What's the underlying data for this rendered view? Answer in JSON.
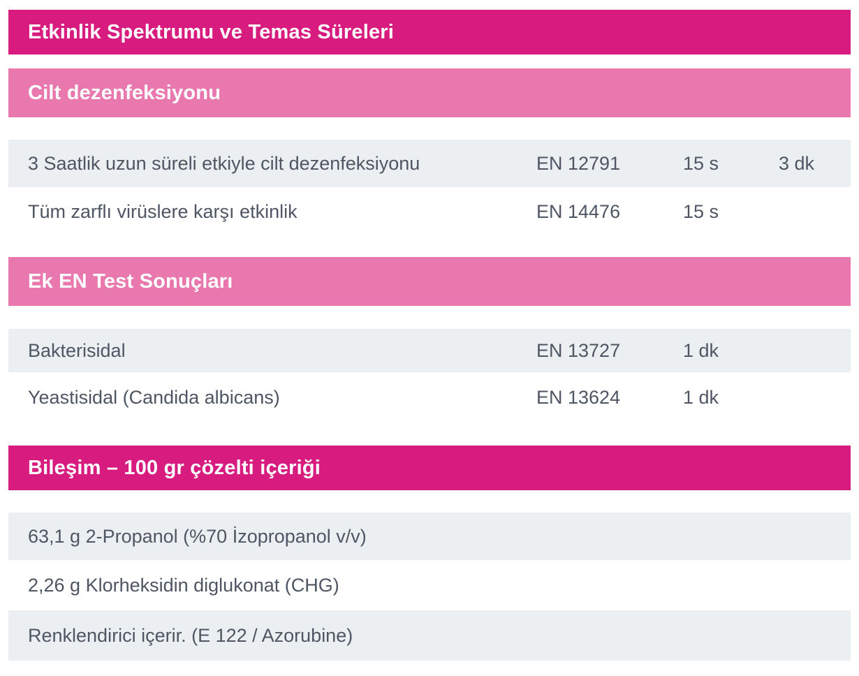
{
  "headers": {
    "main": "Etkinlik Spektrumu ve Temas Süreleri",
    "skin": "Cilt dezenfeksiyonu",
    "extra_tests": "Ek EN Test Sonuçları",
    "composition": "Bileşim – 100 gr çözelti içeriği"
  },
  "skin_rows": [
    {
      "label": "3 Saatlik uzun süreli etkiyle cilt dezenfeksiyonu",
      "standard": "EN 12791",
      "time": "15 s",
      "time2": "3 dk"
    },
    {
      "label": "Tüm zarflı virüslere karşı etkinlik",
      "standard": "EN 14476",
      "time": "15 s",
      "time2": ""
    }
  ],
  "extra_rows": [
    {
      "label": "Bakterisidal",
      "standard": "EN 13727",
      "time": "1 dk"
    },
    {
      "label": "Yeastisidal (Candida albicans)",
      "standard": "EN 13624",
      "time": "1 dk"
    }
  ],
  "composition_rows": [
    {
      "label": "63,1 g 2-Propanol (%70 İzopropanol v/v)"
    },
    {
      "label": "2,26 g Klorheksidin diglukonat (CHG)"
    },
    {
      "label": "Renklendirici içerir. (E 122 / Azorubine)"
    }
  ],
  "colors": {
    "primary": "#d81c7f",
    "secondary": "#e878ad",
    "row_alt": "#eceff2",
    "text": "#4d5662"
  }
}
